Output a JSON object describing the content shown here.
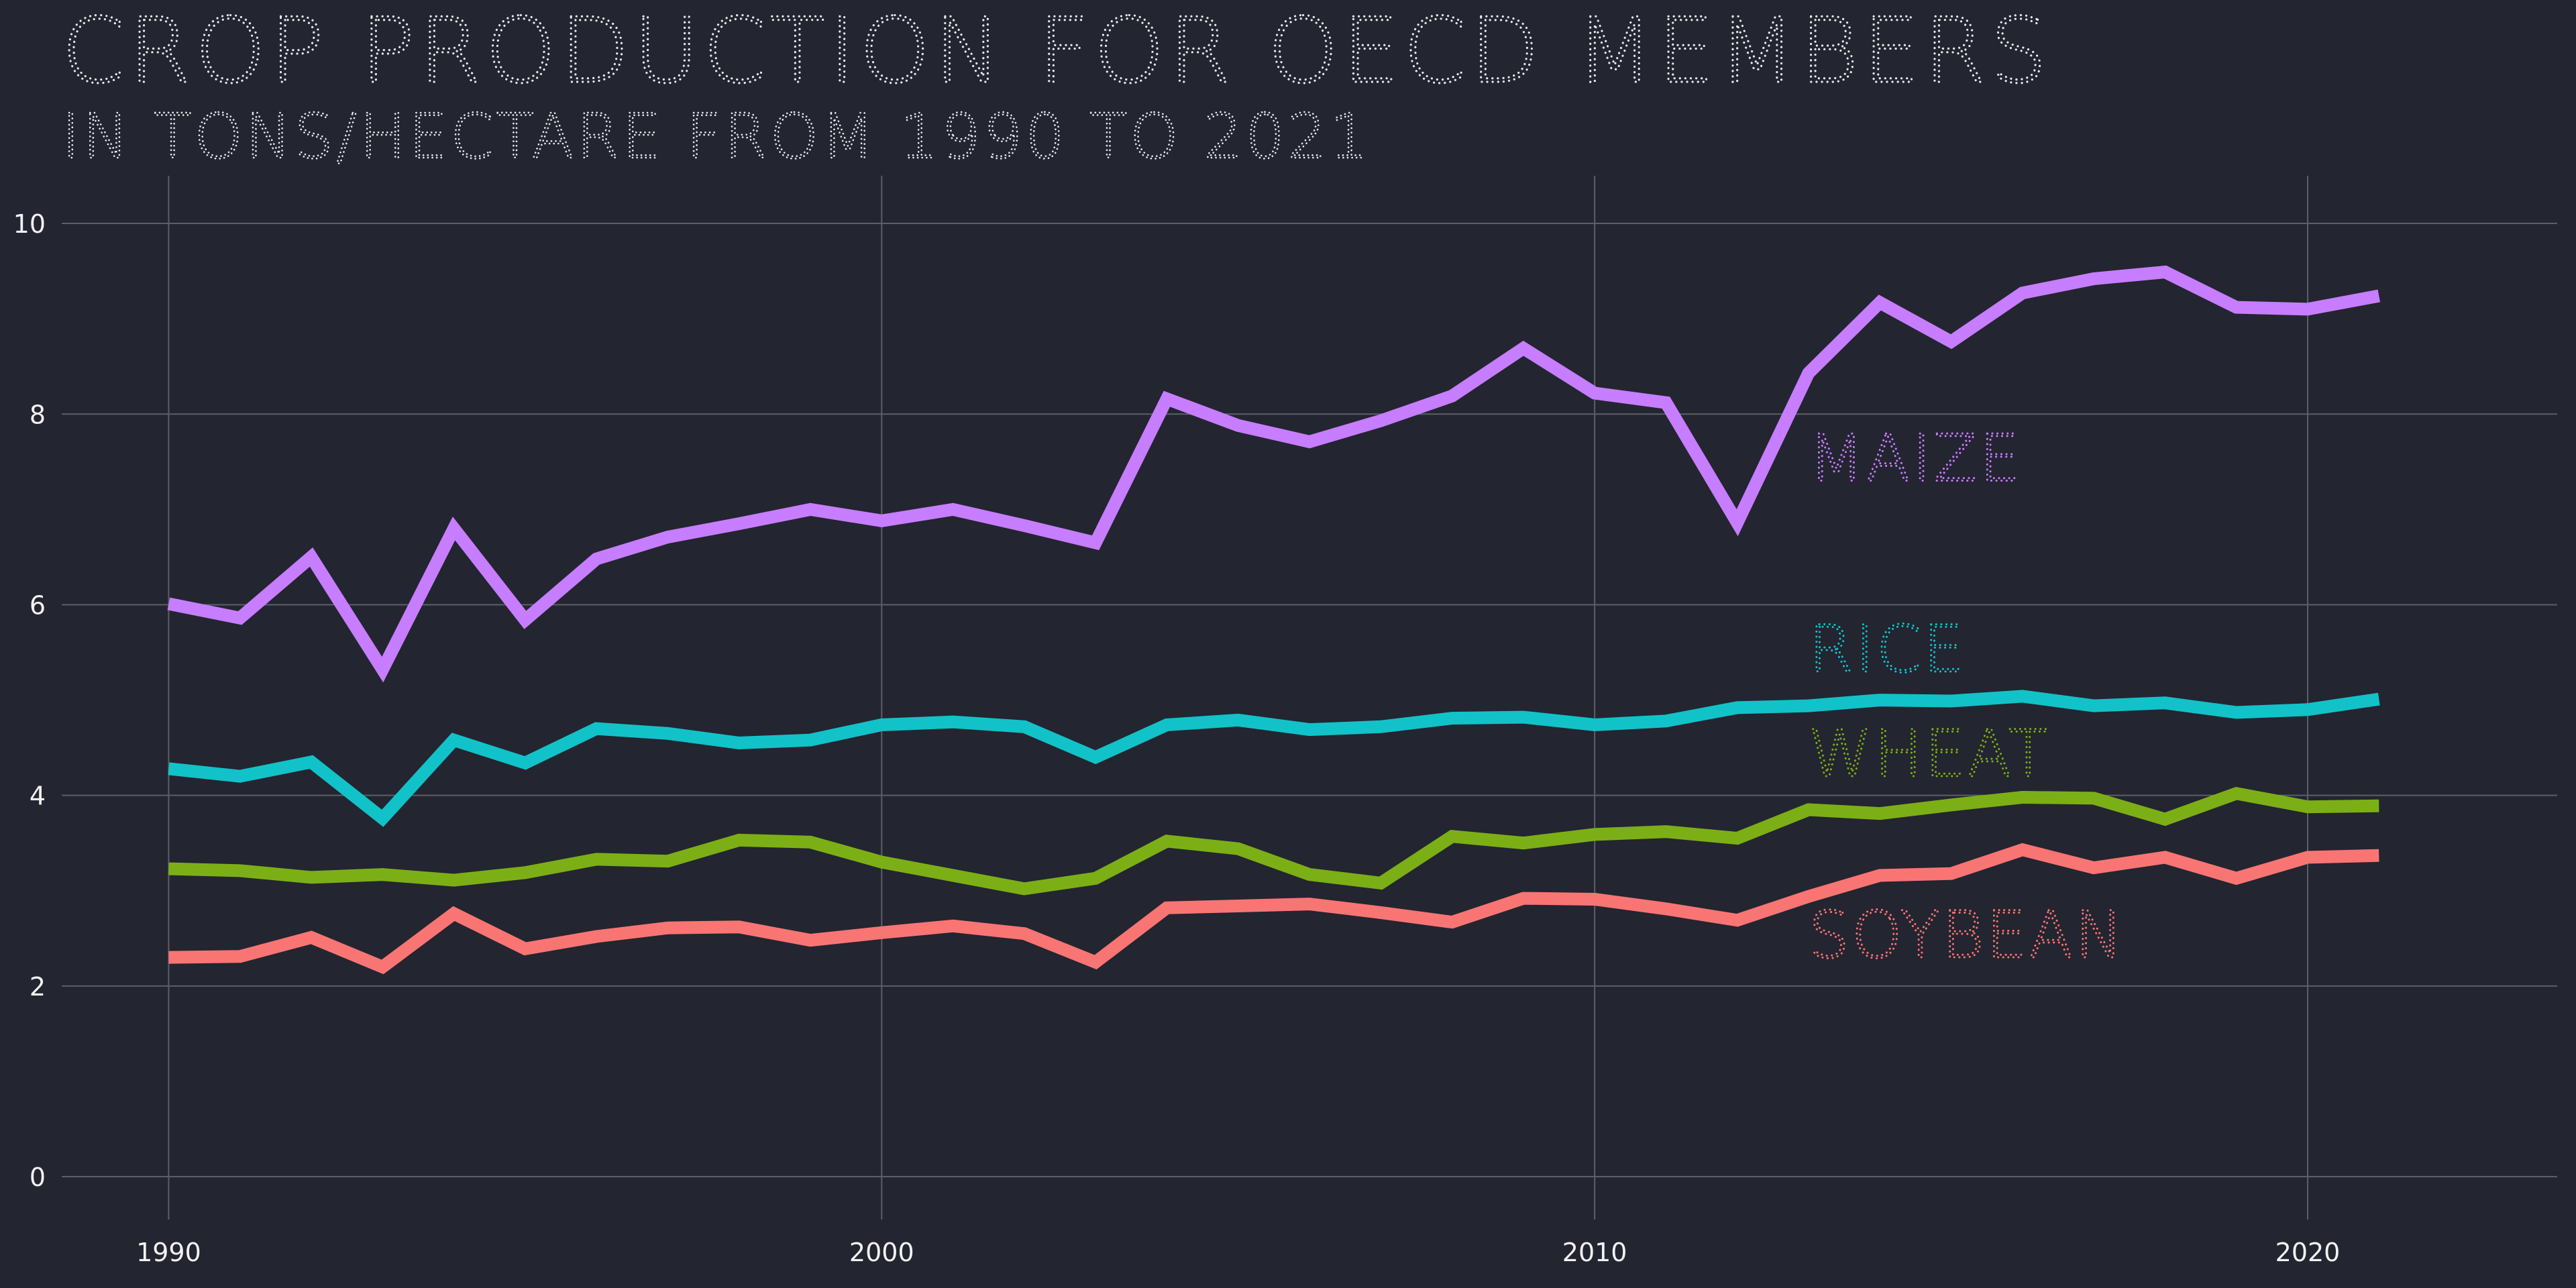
{
  "chart_data": {
    "type": "line",
    "title": "CROP PRODUCTION FOR OECD MEMBERS",
    "subtitle": "IN TONS/HECTARE FROM 1990 TO 2021",
    "xlabel": "",
    "ylabel": "",
    "xlim": [
      1988.5,
      2023.5
    ],
    "ylim": [
      -0.45,
      10.5
    ],
    "x_ticks": [
      1990,
      2000,
      2010,
      2020
    ],
    "y_ticks": [
      0,
      2,
      4,
      6,
      8,
      10
    ],
    "grid": true,
    "legend": "inline labels",
    "x": [
      1990,
      1991,
      1992,
      1993,
      1994,
      1995,
      1996,
      1997,
      1998,
      1999,
      2000,
      2001,
      2002,
      2003,
      2004,
      2005,
      2006,
      2007,
      2008,
      2009,
      2010,
      2011,
      2012,
      2013,
      2014,
      2015,
      2016,
      2017,
      2018,
      2019,
      2020,
      2021
    ],
    "series": [
      {
        "name": "MAIZE",
        "color": "#c77dff",
        "values": [
          6.01,
          5.86,
          6.5,
          5.32,
          6.8,
          5.84,
          6.48,
          6.71,
          6.85,
          7.0,
          6.88,
          7.0,
          6.83,
          6.65,
          8.16,
          7.88,
          7.71,
          7.93,
          8.19,
          8.69,
          8.22,
          8.12,
          6.86,
          8.43,
          9.17,
          8.76,
          9.27,
          9.42,
          9.49,
          9.12,
          9.1,
          9.24
        ],
        "label_x": 2013,
        "label_y": 7.3
      },
      {
        "name": "RICE",
        "color": "#12c2c9",
        "values": [
          4.28,
          4.2,
          4.35,
          3.76,
          4.58,
          4.34,
          4.7,
          4.65,
          4.55,
          4.58,
          4.74,
          4.77,
          4.72,
          4.4,
          4.74,
          4.79,
          4.69,
          4.72,
          4.81,
          4.82,
          4.74,
          4.78,
          4.92,
          4.94,
          5.0,
          4.99,
          5.04,
          4.94,
          4.97,
          4.87,
          4.9,
          5.01
        ],
        "label_x": 2013,
        "label_y": 5.3
      },
      {
        "name": "WHEAT",
        "color": "#7caf16",
        "values": [
          3.23,
          3.21,
          3.14,
          3.17,
          3.11,
          3.19,
          3.33,
          3.31,
          3.53,
          3.51,
          3.3,
          3.16,
          3.02,
          3.13,
          3.52,
          3.44,
          3.17,
          3.08,
          3.57,
          3.5,
          3.59,
          3.62,
          3.55,
          3.85,
          3.81,
          3.9,
          3.98,
          3.97,
          3.75,
          4.02,
          3.88,
          3.89
        ],
        "label_x": 2013,
        "label_y": 4.2
      },
      {
        "name": "SOYBEAN",
        "color": "#f87573",
        "values": [
          2.3,
          2.31,
          2.51,
          2.2,
          2.76,
          2.39,
          2.52,
          2.61,
          2.62,
          2.48,
          2.56,
          2.63,
          2.55,
          2.25,
          2.82,
          2.84,
          2.86,
          2.77,
          2.67,
          2.92,
          2.91,
          2.81,
          2.69,
          2.94,
          3.16,
          3.18,
          3.43,
          3.24,
          3.35,
          3.13,
          3.35,
          3.37
        ],
        "label_x": 2013,
        "label_y": 2.3
      }
    ]
  }
}
